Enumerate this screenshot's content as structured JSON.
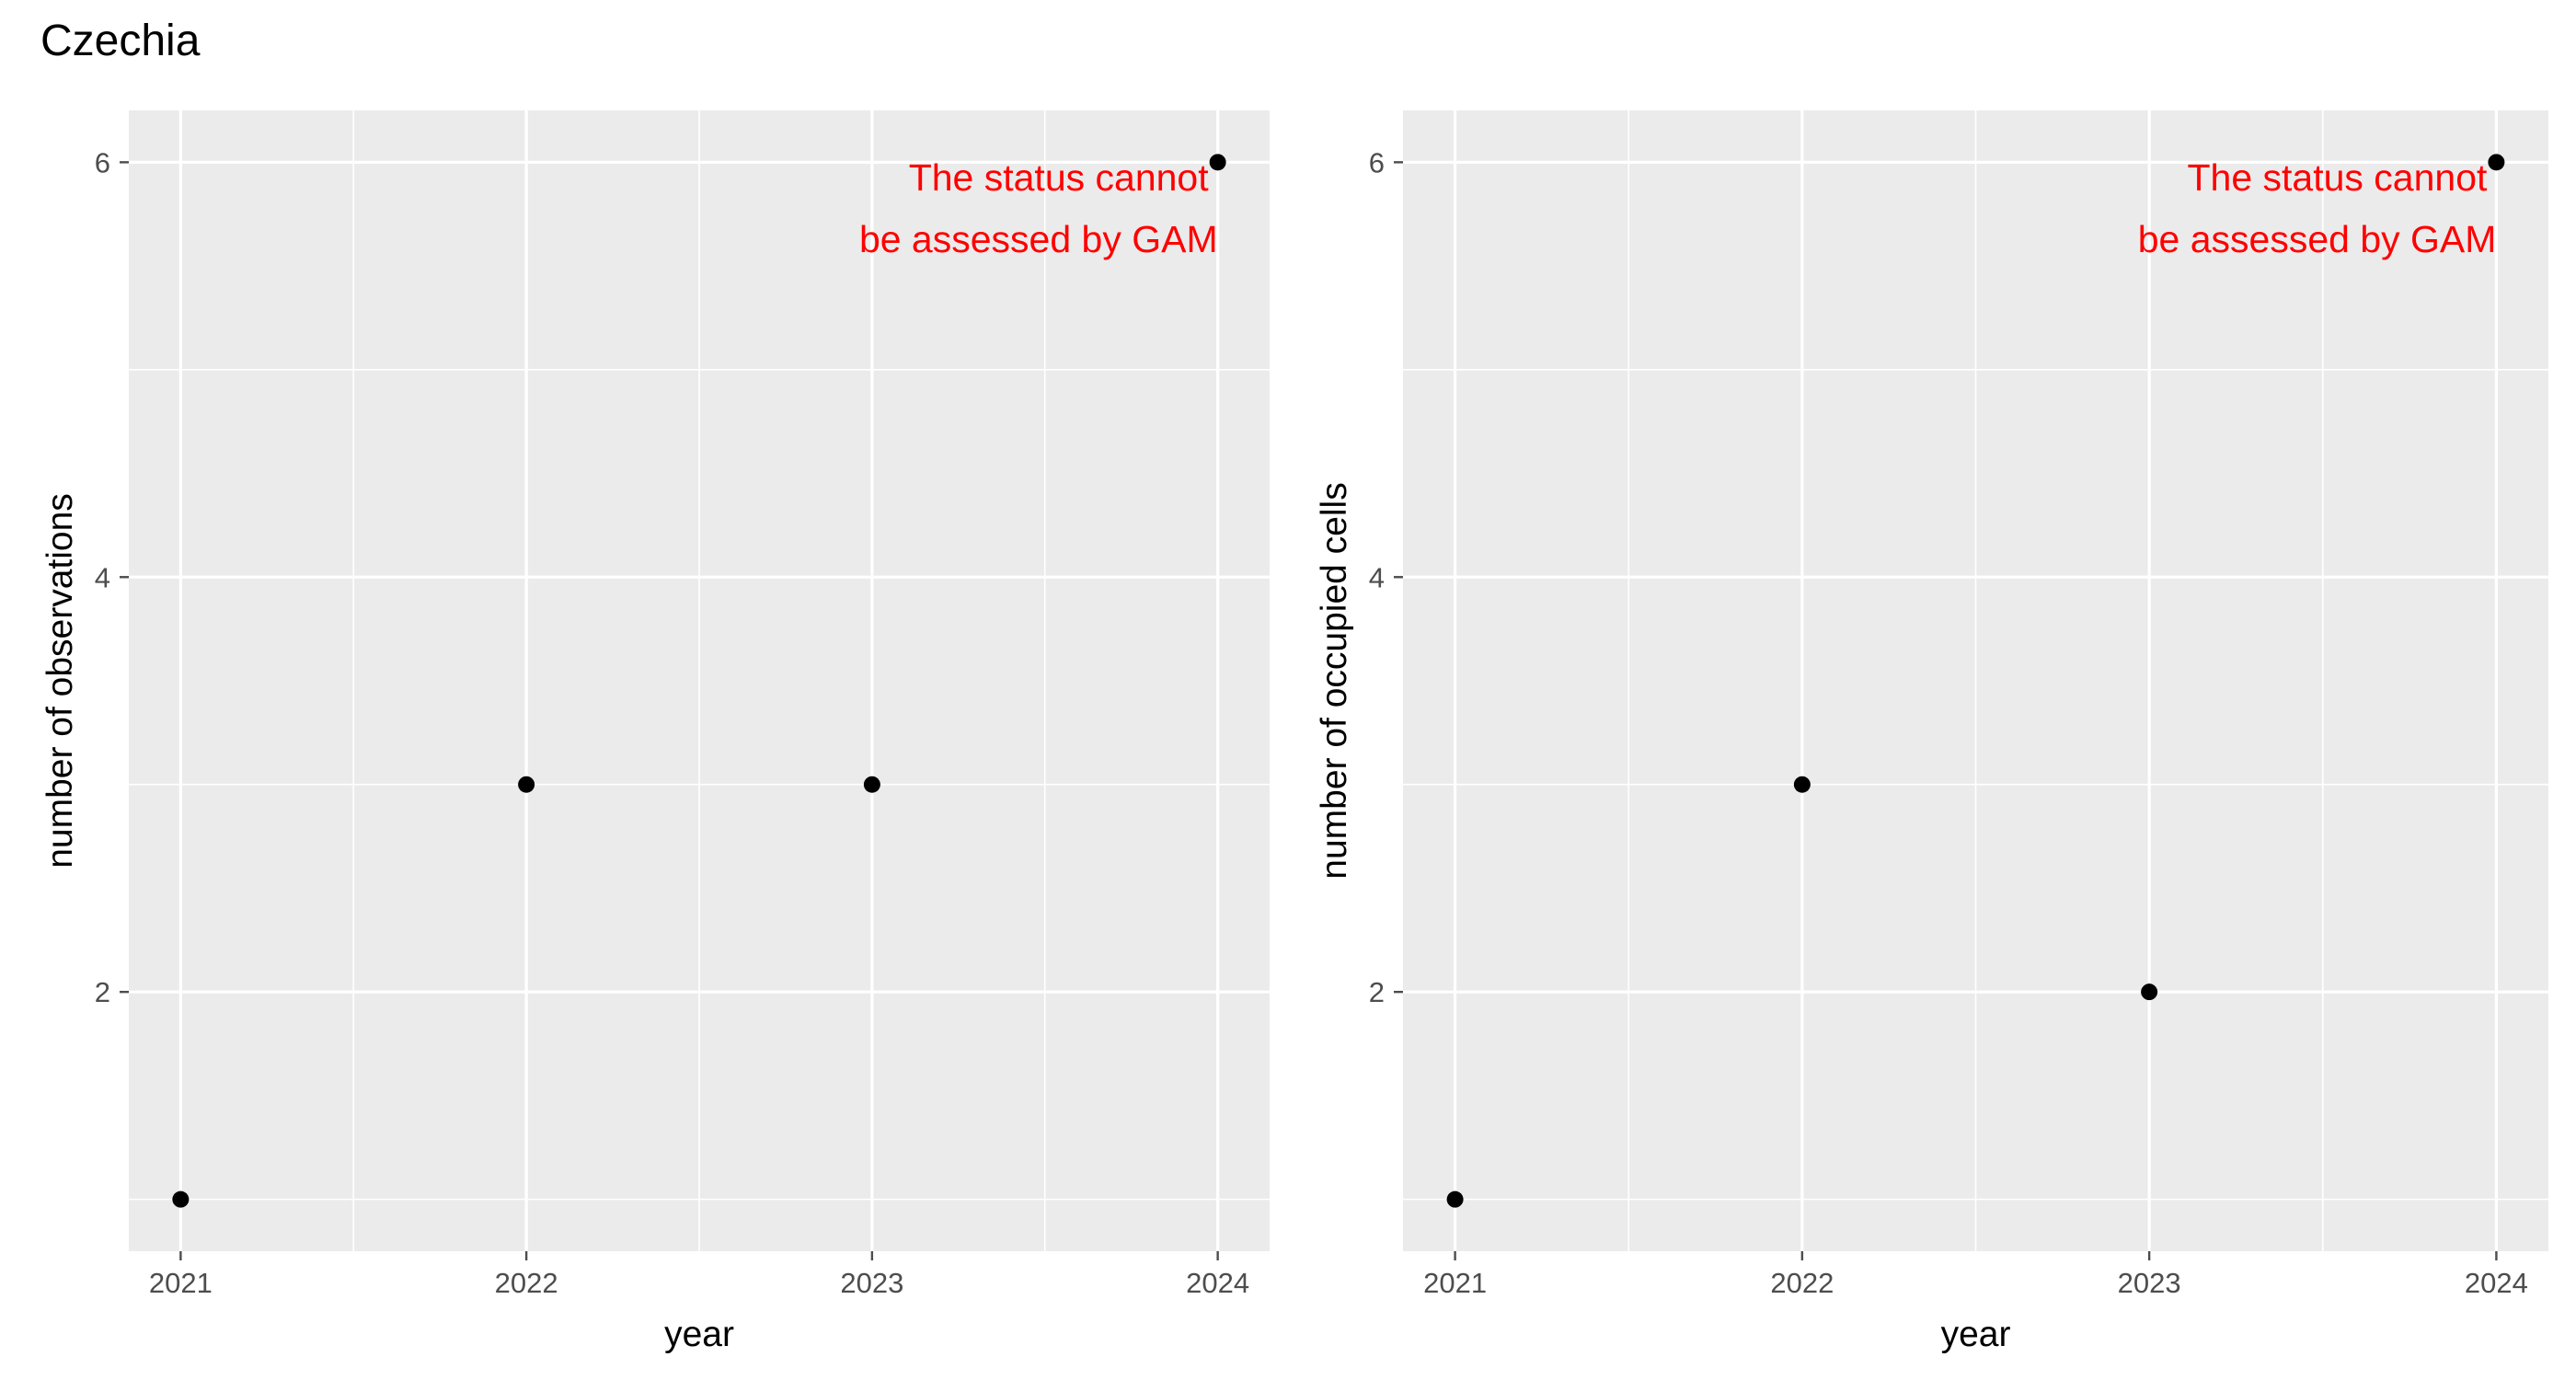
{
  "figure": {
    "title": "Czechia"
  },
  "chart_data": [
    {
      "type": "scatter",
      "x": [
        2021,
        2022,
        2023,
        2024
      ],
      "y": [
        1,
        3,
        3,
        6
      ],
      "xticks": [
        "2021",
        "2022",
        "2023",
        "2024"
      ],
      "yticks": [
        "2",
        "4",
        "6"
      ],
      "xlabel": "year",
      "ylabel": "number of observations",
      "xlim": [
        2020.85,
        2024.15
      ],
      "ylim": [
        0.75,
        6.25
      ],
      "grid": true,
      "annotation": {
        "lines": [
          "The status cannot",
          "be assessed by GAM"
        ],
        "color": "#ff0000"
      }
    },
    {
      "type": "scatter",
      "x": [
        2021,
        2022,
        2023,
        2024
      ],
      "y": [
        1,
        3,
        2,
        6
      ],
      "xticks": [
        "2021",
        "2022",
        "2023",
        "2024"
      ],
      "yticks": [
        "2",
        "4",
        "6"
      ],
      "xlabel": "year",
      "ylabel": "number of occupied cells",
      "xlim": [
        2020.85,
        2024.15
      ],
      "ylim": [
        0.75,
        6.25
      ],
      "grid": true,
      "annotation": {
        "lines": [
          "The status cannot",
          "be assessed by GAM"
        ],
        "color": "#ff0000"
      }
    }
  ],
  "colors": {
    "panel": "#ebebeb",
    "grid": "#ffffff",
    "point": "#000000",
    "tick": "#4d4d4d"
  }
}
